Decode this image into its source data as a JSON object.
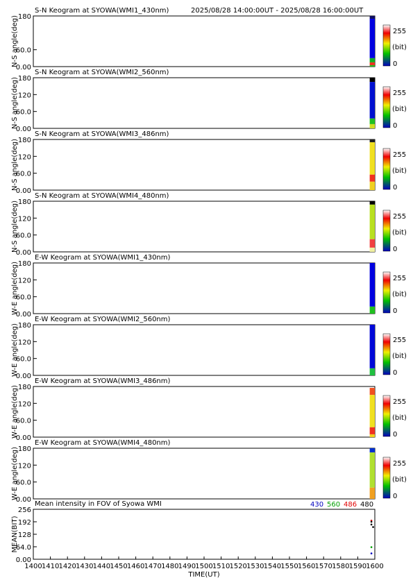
{
  "chart_data": [
    {
      "type": "heatmap",
      "title": "S-N Keogram at SYOWA(WMI1_430nm)",
      "subtitle": "2025/08/28 14:00:00UT - 2025/08/28 16:00:00UT",
      "y_label": "N-S angle(deg)",
      "xlim": [
        1400,
        1600
      ],
      "ylim": [
        0,
        180
      ],
      "yticks": [
        {
          "value": 0,
          "label": "0.00"
        },
        {
          "value": 60,
          "label": "60.0"
        },
        180
      ],
      "clim": [
        0,
        255
      ],
      "clabel": "(bit)",
      "cells": [
        {
          "x": [
            1597,
            1600
          ],
          "y": [
            170,
            180
          ],
          "color": "#101060"
        },
        {
          "x": [
            1597,
            1600
          ],
          "y": [
            30,
            170
          ],
          "color": "#0000e0"
        },
        {
          "x": [
            1597,
            1600
          ],
          "y": [
            15,
            30
          ],
          "color": "#10b020"
        },
        {
          "x": [
            1597,
            1600
          ],
          "y": [
            5,
            15
          ],
          "color": "#f03020"
        },
        {
          "x": [
            1597,
            1600
          ],
          "y": [
            0,
            5
          ],
          "color": "#20c020"
        }
      ]
    },
    {
      "type": "heatmap",
      "title": "S-N Keogram at SYOWA(WMI2_560nm)",
      "y_label": "N-S angle(deg)",
      "xlim": [
        1400,
        1600
      ],
      "ylim": [
        0,
        180
      ],
      "yticks": [
        {
          "value": 0,
          "label": "0.00"
        },
        {
          "value": 60,
          "label": "60.0"
        },
        120,
        180
      ],
      "clim": [
        0,
        255
      ],
      "clabel": "(bit)",
      "cells": [
        {
          "x": [
            1597,
            1600
          ],
          "y": [
            165,
            180
          ],
          "color": "#000000"
        },
        {
          "x": [
            1597,
            1600
          ],
          "y": [
            35,
            165
          ],
          "color": "#0010d0"
        },
        {
          "x": [
            1597,
            1600
          ],
          "y": [
            15,
            35
          ],
          "color": "#20c020"
        },
        {
          "x": [
            1597,
            1600
          ],
          "y": [
            0,
            15
          ],
          "color": "#d0e020"
        }
      ]
    },
    {
      "type": "heatmap",
      "title": "S-N Keogram at SYOWA(WMI3_486nm)",
      "y_label": "N-S angle(deg)",
      "xlim": [
        1400,
        1600
      ],
      "ylim": [
        0,
        180
      ],
      "yticks": [
        {
          "value": 0,
          "label": "0.00"
        },
        {
          "value": 60,
          "label": "60.0"
        },
        120,
        180
      ],
      "clim": [
        0,
        255
      ],
      "clabel": "(bit)",
      "cells": [
        {
          "x": [
            1597,
            1600
          ],
          "y": [
            170,
            180
          ],
          "color": "#202020"
        },
        {
          "x": [
            1597,
            1600
          ],
          "y": [
            55,
            170
          ],
          "color": "#f0e020"
        },
        {
          "x": [
            1597,
            1600
          ],
          "y": [
            30,
            55
          ],
          "color": "#f03020"
        },
        {
          "x": [
            1597,
            1600
          ],
          "y": [
            0,
            30
          ],
          "color": "#f0d020"
        }
      ]
    },
    {
      "type": "heatmap",
      "title": "S-N Keogram at SYOWA(WMI4_480nm)",
      "y_label": "N-S angle(deg)",
      "xlim": [
        1400,
        1600
      ],
      "ylim": [
        0,
        180
      ],
      "yticks": [
        {
          "value": 0,
          "label": "0.00"
        },
        {
          "value": 60,
          "label": "60.0"
        },
        120,
        180
      ],
      "clim": [
        0,
        255
      ],
      "clabel": "(bit)",
      "cells": [
        {
          "x": [
            1597,
            1600
          ],
          "y": [
            168,
            180
          ],
          "color": "#000000"
        },
        {
          "x": [
            1597,
            1600
          ],
          "y": [
            45,
            168
          ],
          "color": "#b8e020"
        },
        {
          "x": [
            1597,
            1600
          ],
          "y": [
            15,
            45
          ],
          "color": "#f04040"
        },
        {
          "x": [
            1597,
            1600
          ],
          "y": [
            0,
            15
          ],
          "color": "#f0f0a0"
        }
      ]
    },
    {
      "type": "heatmap",
      "title": "E-W Keogram at SYOWA(WMI1_430nm)",
      "y_label": "W-E angle(deg)",
      "xlim": [
        1400,
        1600
      ],
      "ylim": [
        0,
        180
      ],
      "yticks": [
        {
          "value": 0,
          "label": "0.00"
        },
        {
          "value": 60,
          "label": "60.0"
        },
        120,
        180
      ],
      "clim": [
        0,
        255
      ],
      "clabel": "(bit)",
      "cells": [
        {
          "x": [
            1597,
            1600
          ],
          "y": [
            25,
            180
          ],
          "color": "#0000e0"
        },
        {
          "x": [
            1597,
            1600
          ],
          "y": [
            0,
            25
          ],
          "color": "#20c020"
        }
      ]
    },
    {
      "type": "heatmap",
      "title": "E-W Keogram at SYOWA(WMI2_560nm)",
      "y_label": "W-E angle(deg)",
      "xlim": [
        1400,
        1600
      ],
      "ylim": [
        0,
        180
      ],
      "yticks": [
        {
          "value": 0,
          "label": "0.00"
        },
        {
          "value": 60,
          "label": "60.0"
        },
        120,
        180
      ],
      "clim": [
        0,
        255
      ],
      "clabel": "(bit)",
      "cells": [
        {
          "x": [
            1597,
            1600
          ],
          "y": [
            25,
            180
          ],
          "color": "#0008d8"
        },
        {
          "x": [
            1597,
            1600
          ],
          "y": [
            0,
            25
          ],
          "color": "#20c040"
        }
      ]
    },
    {
      "type": "heatmap",
      "title": "E-W Keogram at SYOWA(WMI3_486nm)",
      "y_label": "W-E angle(deg)",
      "xlim": [
        1400,
        1600
      ],
      "ylim": [
        0,
        180
      ],
      "yticks": [
        {
          "value": 0,
          "label": "0.00"
        },
        {
          "value": 60,
          "label": "60.0"
        },
        120,
        180
      ],
      "clim": [
        0,
        255
      ],
      "clabel": "(bit)",
      "cells": [
        {
          "x": [
            1597,
            1600
          ],
          "y": [
            150,
            175
          ],
          "color": "#f05020"
        },
        {
          "x": [
            1597,
            1600
          ],
          "y": [
            35,
            150
          ],
          "color": "#f0e020"
        },
        {
          "x": [
            1597,
            1600
          ],
          "y": [
            10,
            35
          ],
          "color": "#f03020"
        },
        {
          "x": [
            1597,
            1600
          ],
          "y": [
            0,
            10
          ],
          "color": "#f0d020"
        }
      ]
    },
    {
      "type": "heatmap",
      "title": "E-W Keogram at SYOWA(WMI4_480nm)",
      "y_label": "W-E angle(deg)",
      "xlim": [
        1400,
        1600
      ],
      "ylim": [
        0,
        180
      ],
      "yticks": [
        {
          "value": 0,
          "label": "0.00"
        },
        {
          "value": 60,
          "label": "60.0"
        },
        120,
        180
      ],
      "clim": [
        0,
        255
      ],
      "clabel": "(bit)",
      "cells": [
        {
          "x": [
            1597,
            1600
          ],
          "y": [
            165,
            180
          ],
          "color": "#0030d0"
        },
        {
          "x": [
            1597,
            1600
          ],
          "y": [
            40,
            165
          ],
          "color": "#b0e030"
        },
        {
          "x": [
            1597,
            1600
          ],
          "y": [
            0,
            40
          ],
          "color": "#f0a020"
        }
      ]
    },
    {
      "type": "scatter",
      "title": "Mean intensity in FOV of Syowa WMI",
      "x_label": "TIME(UT)",
      "y_label": "MEAN(BIT)",
      "xlim": [
        1400,
        1600
      ],
      "ylim": [
        0,
        256
      ],
      "xticks": [
        1400,
        1410,
        1420,
        1430,
        1440,
        1450,
        1460,
        1470,
        1480,
        1490,
        1500,
        1510,
        1520,
        1530,
        1540,
        1550,
        1560,
        1570,
        1580,
        1590,
        1600
      ],
      "yticks": [
        {
          "value": 0,
          "label": "0.00"
        },
        {
          "value": 64,
          "label": "64.0"
        },
        128,
        192,
        256
      ],
      "series": [
        {
          "name": "430",
          "color": "#0000c0",
          "x": [
            1598
          ],
          "values": [
            30
          ]
        },
        {
          "name": "560",
          "color": "#00a000",
          "x": [
            1598
          ],
          "values": [
            62
          ]
        },
        {
          "name": "486",
          "color": "#e00000",
          "x": [
            1598
          ],
          "values": [
            198
          ]
        },
        {
          "name": "480",
          "color": "#000000",
          "x": [
            1598,
            1598,
            1599
          ],
          "values": [
            192,
            178,
            165
          ]
        }
      ]
    }
  ]
}
